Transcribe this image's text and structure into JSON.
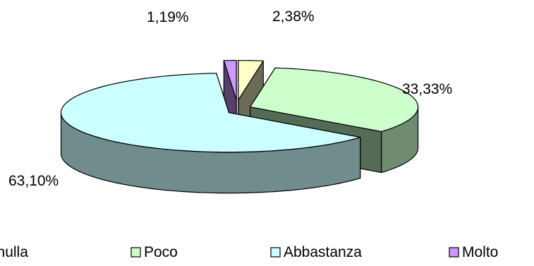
{
  "chart_data": {
    "type": "pie",
    "style": "3d-exploded",
    "slices": [
      {
        "name": "Per nulla",
        "value": 2.38,
        "label": "2,38%",
        "color": "#FFFFCC"
      },
      {
        "name": "Poco",
        "value": 33.33,
        "label": "33,33%",
        "color": "#CCFFCC"
      },
      {
        "name": "Abbastanza",
        "value": 63.1,
        "label": "63,10%",
        "color": "#CCFFFF"
      },
      {
        "name": "Molto",
        "value": 1.19,
        "label": "1,19%",
        "color": "#CC99FF"
      }
    ],
    "legend": {
      "placement": "bottom",
      "items": [
        "Per nulla",
        "Poco",
        "Abbastanza",
        "Molto"
      ]
    }
  }
}
